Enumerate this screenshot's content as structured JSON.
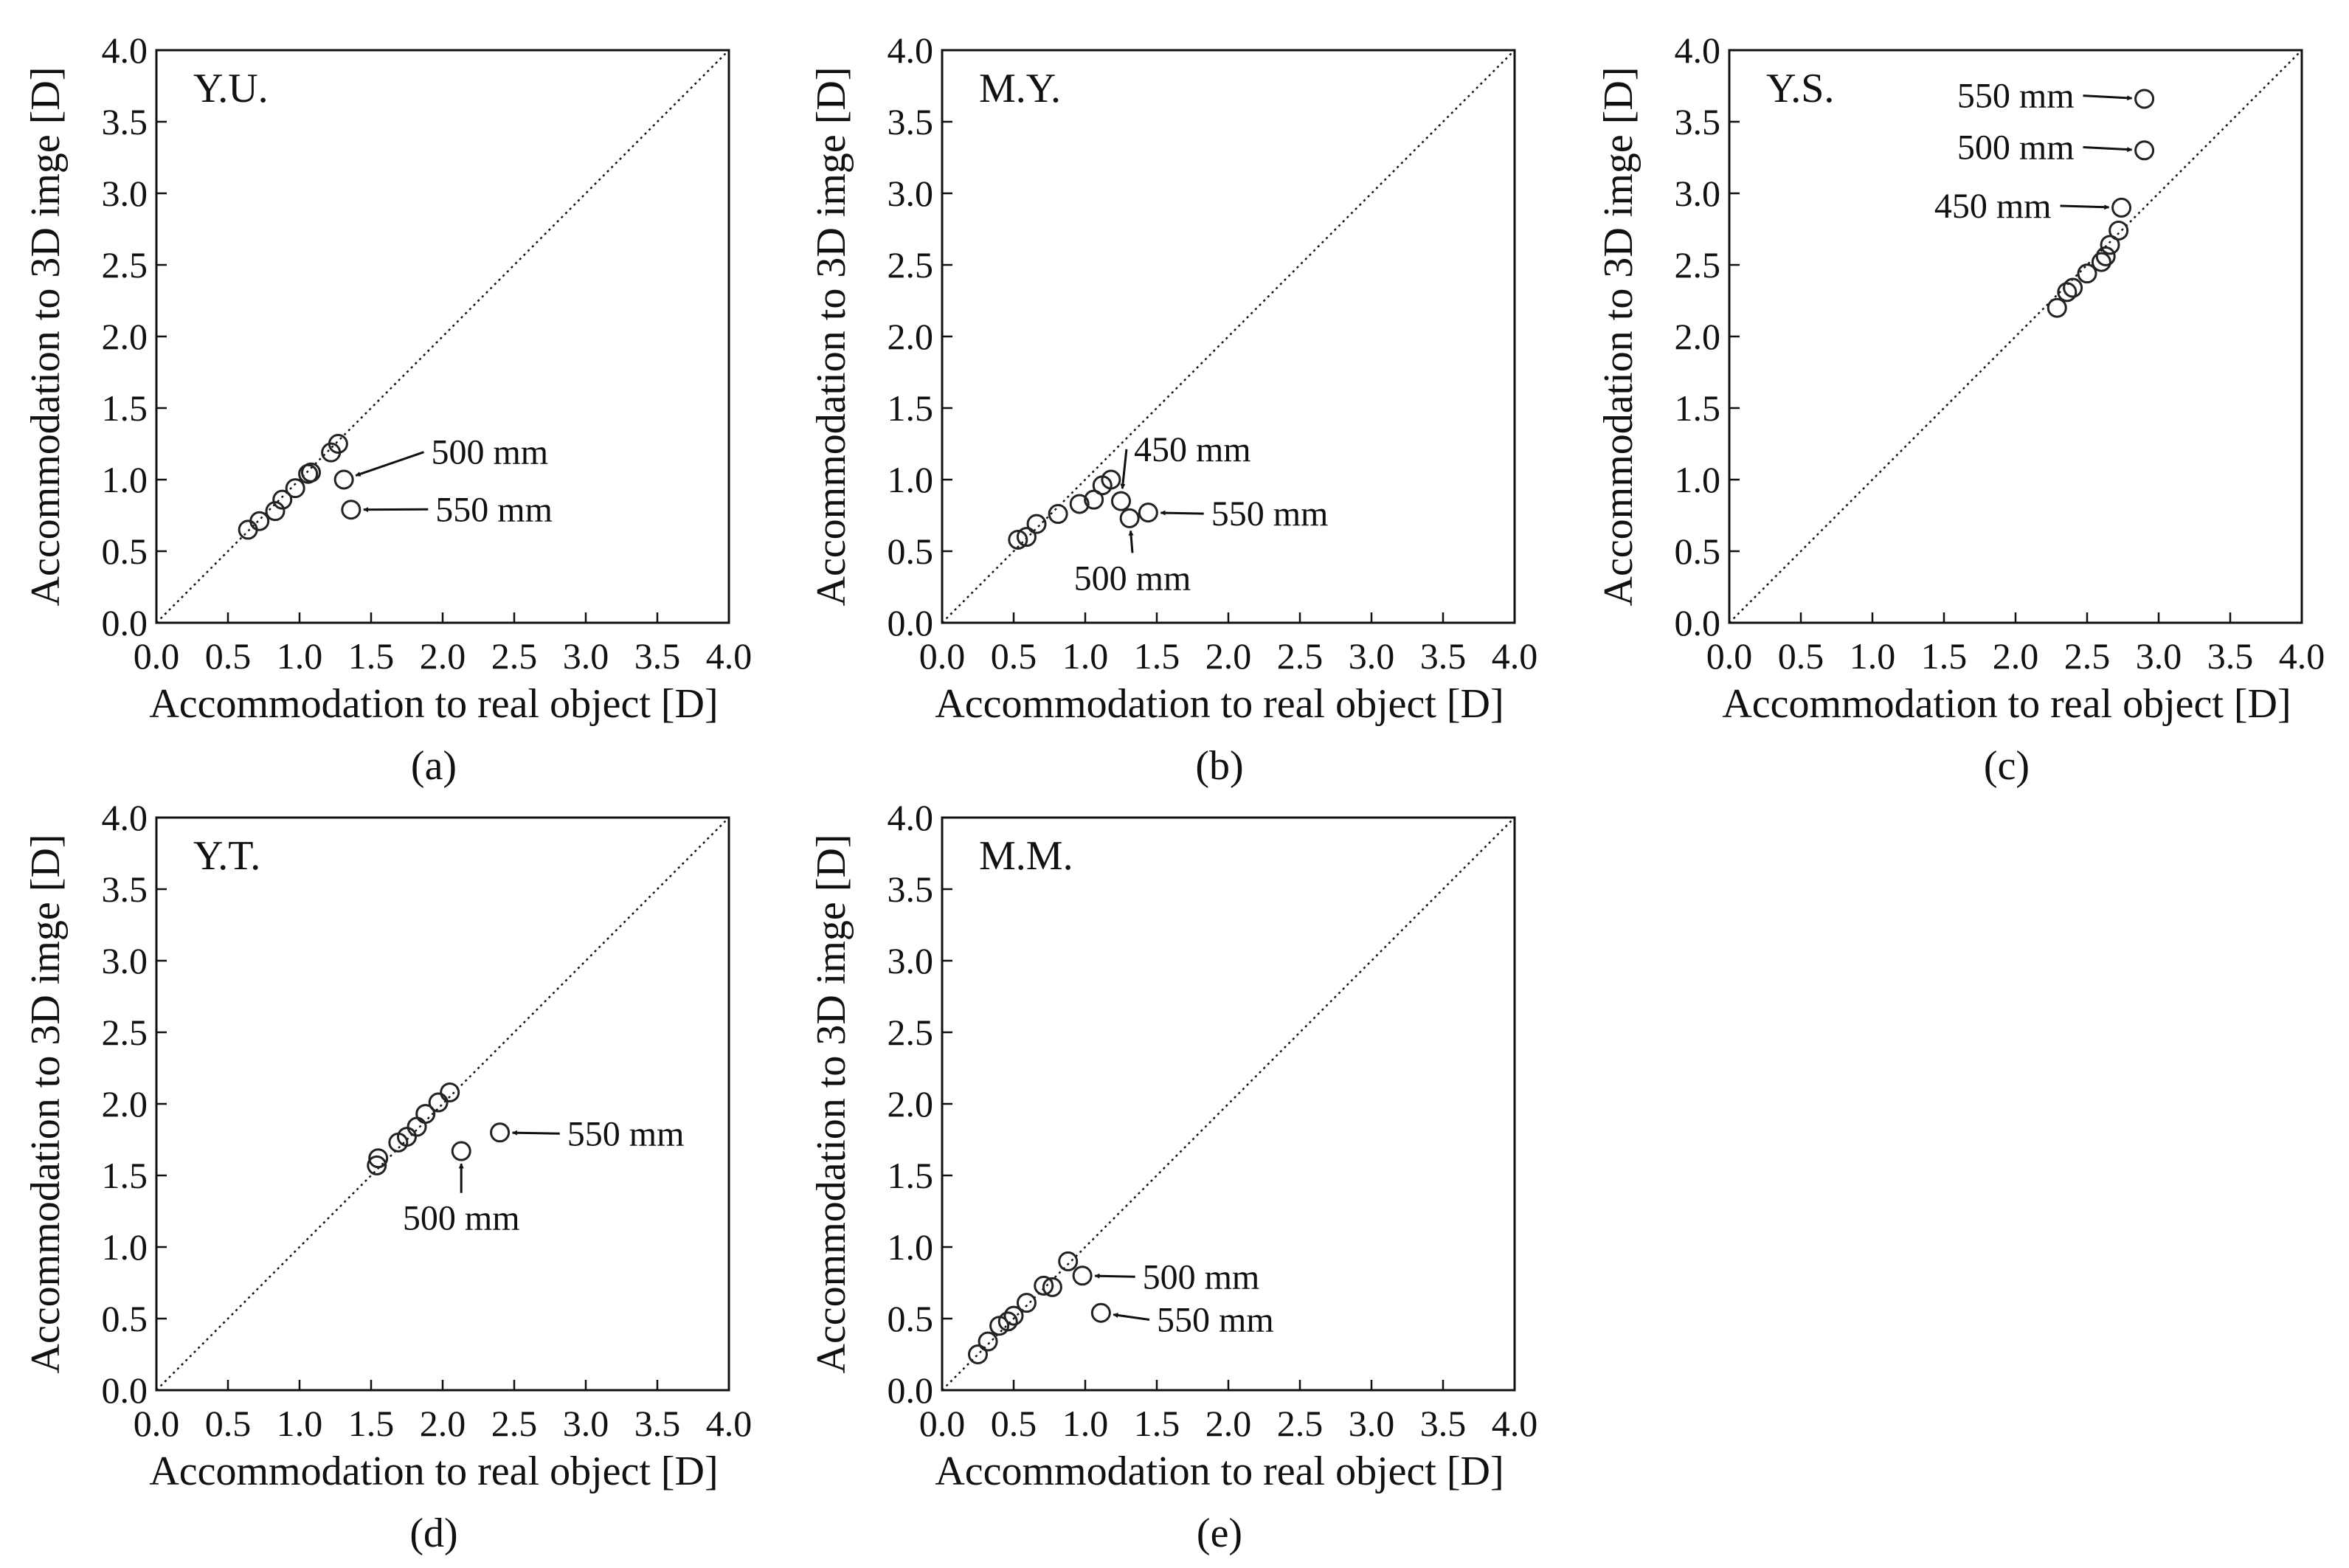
{
  "figure": {
    "colors": {
      "ink": "#111111",
      "marker": "#222222",
      "background": "#ffffff"
    }
  },
  "chart_data": [
    {
      "type": "scatter",
      "panel_label": "(a)",
      "subject": "Y.U.",
      "xlabel": "Accommodation to real object [D]",
      "ylabel": "Accommodation to 3D imge [D]",
      "xlim": [
        0,
        4
      ],
      "ylim": [
        0,
        4
      ],
      "xticks": [
        "0.0",
        "0.5",
        "1.0",
        "1.5",
        "2.0",
        "2.5",
        "3.0",
        "3.5",
        "4.0"
      ],
      "yticks": [
        "0.0",
        "0.5",
        "1.0",
        "1.5",
        "2.0",
        "2.5",
        "3.0",
        "3.5",
        "4.0"
      ],
      "reference_line": "y = x",
      "points": [
        {
          "x": 0.64,
          "y": 0.65
        },
        {
          "x": 0.72,
          "y": 0.71
        },
        {
          "x": 0.83,
          "y": 0.78
        },
        {
          "x": 0.88,
          "y": 0.86
        },
        {
          "x": 0.97,
          "y": 0.94
        },
        {
          "x": 1.06,
          "y": 1.04
        },
        {
          "x": 1.08,
          "y": 1.05
        },
        {
          "x": 1.22,
          "y": 1.19
        },
        {
          "x": 1.27,
          "y": 1.25
        },
        {
          "x": 1.31,
          "y": 1.0
        },
        {
          "x": 1.36,
          "y": 0.79
        }
      ],
      "annotations": [
        {
          "text": "500 mm",
          "px": 1.31,
          "py": 1.0,
          "lx": 1.92,
          "ly": 1.11,
          "anchor": "start"
        },
        {
          "text": "550 mm",
          "px": 1.36,
          "py": 0.79,
          "lx": 1.95,
          "ly": 0.71,
          "anchor": "start"
        }
      ]
    },
    {
      "type": "scatter",
      "panel_label": "(b)",
      "subject": "M.Y.",
      "xlabel": "Accommodation to real object [D]",
      "ylabel": "Accommodation to 3D imge [D]",
      "xlim": [
        0,
        4
      ],
      "ylim": [
        0,
        4
      ],
      "xticks": [
        "0.0",
        "0.5",
        "1.0",
        "1.5",
        "2.0",
        "2.5",
        "3.0",
        "3.5",
        "4.0"
      ],
      "yticks": [
        "0.0",
        "0.5",
        "1.0",
        "1.5",
        "2.0",
        "2.5",
        "3.0",
        "3.5",
        "4.0"
      ],
      "reference_line": "y = x",
      "points": [
        {
          "x": 0.53,
          "y": 0.58
        },
        {
          "x": 0.59,
          "y": 0.6
        },
        {
          "x": 0.66,
          "y": 0.69
        },
        {
          "x": 0.81,
          "y": 0.76
        },
        {
          "x": 0.96,
          "y": 0.83
        },
        {
          "x": 1.06,
          "y": 0.86
        },
        {
          "x": 1.12,
          "y": 0.96
        },
        {
          "x": 1.18,
          "y": 1.0
        },
        {
          "x": 1.25,
          "y": 0.85
        },
        {
          "x": 1.31,
          "y": 0.73
        },
        {
          "x": 1.44,
          "y": 0.77
        }
      ],
      "annotations": [
        {
          "text": "450 mm",
          "px": 1.25,
          "py": 0.85,
          "lx": 1.34,
          "ly": 1.13,
          "anchor": "start"
        },
        {
          "text": "500 mm",
          "px": 1.31,
          "py": 0.73,
          "lx": 1.33,
          "ly": 0.23,
          "anchor": "middle"
        },
        {
          "text": "550 mm",
          "px": 1.44,
          "py": 0.77,
          "lx": 1.88,
          "ly": 0.68,
          "anchor": "start"
        }
      ]
    },
    {
      "type": "scatter",
      "panel_label": "(c)",
      "subject": "Y.S.",
      "xlabel": "Accommodation to real object [D]",
      "ylabel": "Accommodation to 3D imge [D]",
      "xlim": [
        0,
        4
      ],
      "ylim": [
        0,
        4
      ],
      "xticks": [
        "0.0",
        "0.5",
        "1.0",
        "1.5",
        "2.0",
        "2.5",
        "3.0",
        "3.5",
        "4.0"
      ],
      "yticks": [
        "0.0",
        "0.5",
        "1.0",
        "1.5",
        "2.0",
        "2.5",
        "3.0",
        "3.5",
        "4.0"
      ],
      "reference_line": "y = x",
      "points": [
        {
          "x": 2.29,
          "y": 2.2
        },
        {
          "x": 2.36,
          "y": 2.31
        },
        {
          "x": 2.4,
          "y": 2.34
        },
        {
          "x": 2.5,
          "y": 2.44
        },
        {
          "x": 2.6,
          "y": 2.52
        },
        {
          "x": 2.63,
          "y": 2.56
        },
        {
          "x": 2.66,
          "y": 2.64
        },
        {
          "x": 2.72,
          "y": 2.74
        },
        {
          "x": 2.74,
          "y": 2.9
        },
        {
          "x": 2.9,
          "y": 3.3
        },
        {
          "x": 2.9,
          "y": 3.66
        }
      ],
      "annotations": [
        {
          "text": "450 mm",
          "px": 2.74,
          "py": 2.9,
          "lx": 2.25,
          "ly": 2.83,
          "anchor": "end"
        },
        {
          "text": "500 mm",
          "px": 2.9,
          "py": 3.3,
          "lx": 2.41,
          "ly": 3.24,
          "anchor": "end"
        },
        {
          "text": "550 mm",
          "px": 2.9,
          "py": 3.66,
          "lx": 2.41,
          "ly": 3.6,
          "anchor": "end"
        }
      ]
    },
    {
      "type": "scatter",
      "panel_label": "(d)",
      "subject": "Y.T.",
      "xlabel": "Accommodation to real object [D]",
      "ylabel": "Accommodation to 3D imge [D]",
      "xlim": [
        0,
        4
      ],
      "ylim": [
        0,
        4
      ],
      "xticks": [
        "0.0",
        "0.5",
        "1.0",
        "1.5",
        "2.0",
        "2.5",
        "3.0",
        "3.5",
        "4.0"
      ],
      "yticks": [
        "0.0",
        "0.5",
        "1.0",
        "1.5",
        "2.0",
        "2.5",
        "3.0",
        "3.5",
        "4.0"
      ],
      "reference_line": "y = x",
      "points": [
        {
          "x": 1.54,
          "y": 1.57
        },
        {
          "x": 1.55,
          "y": 1.62
        },
        {
          "x": 1.69,
          "y": 1.73
        },
        {
          "x": 1.75,
          "y": 1.77
        },
        {
          "x": 1.82,
          "y": 1.84
        },
        {
          "x": 1.88,
          "y": 1.93
        },
        {
          "x": 1.97,
          "y": 2.01
        },
        {
          "x": 2.05,
          "y": 2.08
        },
        {
          "x": 2.13,
          "y": 1.67
        },
        {
          "x": 2.4,
          "y": 1.8
        }
      ],
      "annotations": [
        {
          "text": "500 mm",
          "px": 2.13,
          "py": 1.67,
          "lx": 2.13,
          "ly": 1.12,
          "anchor": "middle"
        },
        {
          "text": "550 mm",
          "px": 2.4,
          "py": 1.8,
          "lx": 2.87,
          "ly": 1.71,
          "anchor": "start"
        }
      ]
    },
    {
      "type": "scatter",
      "panel_label": "(e)",
      "subject": "M.M.",
      "xlabel": "Accommodation to real object [D]",
      "ylabel": "Accommodation to 3D imge [D]",
      "xlim": [
        0,
        4
      ],
      "ylim": [
        0,
        4
      ],
      "xticks": [
        "0.0",
        "0.5",
        "1.0",
        "1.5",
        "2.0",
        "2.5",
        "3.0",
        "3.5",
        "4.0"
      ],
      "yticks": [
        "0.0",
        "0.5",
        "1.0",
        "1.5",
        "2.0",
        "2.5",
        "3.0",
        "3.5",
        "4.0"
      ],
      "reference_line": "y = x",
      "points": [
        {
          "x": 0.25,
          "y": 0.25
        },
        {
          "x": 0.32,
          "y": 0.34
        },
        {
          "x": 0.4,
          "y": 0.45
        },
        {
          "x": 0.46,
          "y": 0.48
        },
        {
          "x": 0.5,
          "y": 0.52
        },
        {
          "x": 0.59,
          "y": 0.61
        },
        {
          "x": 0.71,
          "y": 0.73
        },
        {
          "x": 0.77,
          "y": 0.72
        },
        {
          "x": 0.88,
          "y": 0.9
        },
        {
          "x": 0.98,
          "y": 0.8
        },
        {
          "x": 1.11,
          "y": 0.54
        }
      ],
      "annotations": [
        {
          "text": "500 mm",
          "px": 0.98,
          "py": 0.8,
          "lx": 1.4,
          "ly": 0.71,
          "anchor": "start"
        },
        {
          "text": "550 mm",
          "px": 1.11,
          "py": 0.54,
          "lx": 1.5,
          "ly": 0.41,
          "anchor": "start"
        }
      ]
    }
  ]
}
